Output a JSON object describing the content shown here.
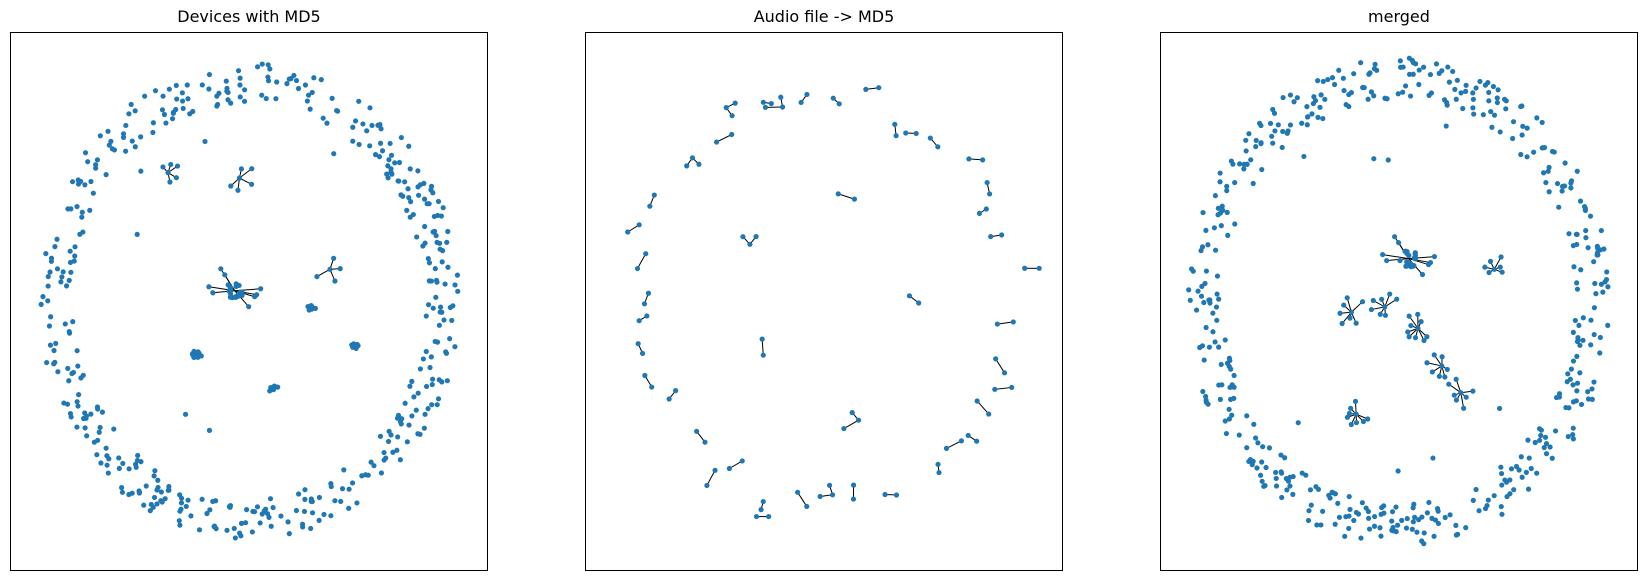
{
  "figure": {
    "node_color": "#1f77b4",
    "edge_color": "#000000"
  },
  "panels": [
    {
      "title": "Devices with MD5",
      "ring": {
        "count": 440,
        "rx_frac": 0.44,
        "ry_frac": 0.44
      },
      "stray_nodes": 6,
      "clusters": [
        {
          "fx": 0.33,
          "fy": 0.26,
          "kind": "star",
          "leaves": 5
        },
        {
          "fx": 0.48,
          "fy": 0.27,
          "kind": "star",
          "leaves": 5
        },
        {
          "fx": 0.47,
          "fy": 0.48,
          "kind": "hub",
          "leaves": 18
        },
        {
          "fx": 0.67,
          "fy": 0.44,
          "kind": "star",
          "leaves": 4
        },
        {
          "fx": 0.63,
          "fy": 0.51,
          "kind": "blob",
          "leaves": 9
        },
        {
          "fx": 0.72,
          "fy": 0.58,
          "kind": "blob",
          "leaves": 9
        },
        {
          "fx": 0.39,
          "fy": 0.6,
          "kind": "blob",
          "leaves": 12
        },
        {
          "fx": 0.55,
          "fy": 0.66,
          "kind": "blob",
          "leaves": 9
        }
      ]
    },
    {
      "title": "Audio file -> MD5",
      "pairs": 45
    },
    {
      "title": "merged",
      "ring": {
        "count": 470,
        "rx_frac": 0.44,
        "ry_frac": 0.45
      },
      "stray_nodes": 8,
      "clusters": [
        {
          "fx": 0.52,
          "fy": 0.42,
          "kind": "hub",
          "leaves": 20
        },
        {
          "fx": 0.7,
          "fy": 0.44,
          "kind": "star",
          "leaves": 6
        },
        {
          "fx": 0.4,
          "fy": 0.52,
          "kind": "star",
          "leaves": 7
        },
        {
          "fx": 0.47,
          "fy": 0.51,
          "kind": "star",
          "leaves": 7
        },
        {
          "fx": 0.54,
          "fy": 0.55,
          "kind": "star",
          "leaves": 9
        },
        {
          "fx": 0.59,
          "fy": 0.62,
          "kind": "star",
          "leaves": 7
        },
        {
          "fx": 0.63,
          "fy": 0.67,
          "kind": "star",
          "leaves": 7
        },
        {
          "fx": 0.41,
          "fy": 0.71,
          "kind": "star",
          "leaves": 8
        }
      ]
    }
  ]
}
